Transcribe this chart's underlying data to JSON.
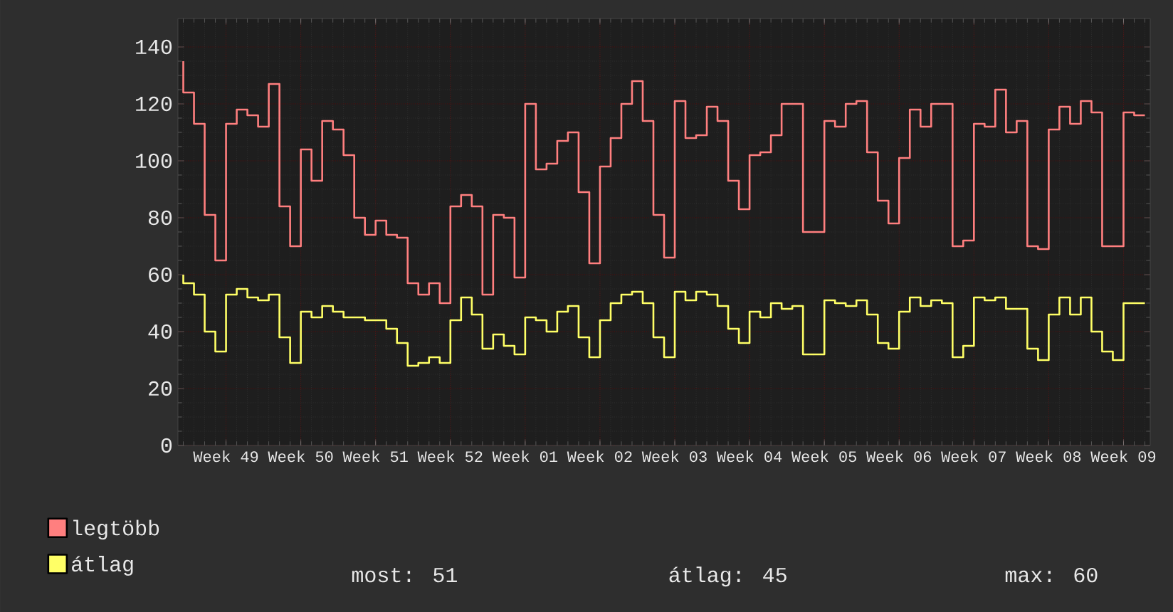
{
  "chart_data": {
    "type": "step",
    "categories": [
      null,
      null,
      null,
      null,
      "Week 49",
      null,
      null,
      null,
      null,
      null,
      null,
      "Week 50",
      null,
      null,
      null,
      null,
      null,
      null,
      "Week 51",
      null,
      null,
      null,
      null,
      null,
      null,
      "Week 52",
      null,
      null,
      null,
      null,
      null,
      null,
      "Week 01",
      null,
      null,
      null,
      null,
      null,
      null,
      "Week 02",
      null,
      null,
      null,
      null,
      null,
      null,
      "Week 03",
      null,
      null,
      null,
      null,
      null,
      null,
      "Week 04",
      null,
      null,
      null,
      null,
      null,
      null,
      "Week 05",
      null,
      null,
      null,
      null,
      null,
      null,
      "Week 06",
      null,
      null,
      null,
      null,
      null,
      null,
      "Week 07",
      null,
      null,
      null,
      null,
      null,
      null,
      "Week 08",
      null,
      null,
      null,
      null,
      null,
      null,
      "Week 09",
      null,
      null
    ],
    "series": [
      {
        "name": "legtöbb",
        "color": "#ff7f7f",
        "values": [
          135,
          124,
          113,
          81,
          65,
          113,
          118,
          116,
          112,
          127,
          84,
          70,
          104,
          93,
          114,
          111,
          102,
          80,
          74,
          79,
          74,
          73,
          57,
          53,
          57,
          50,
          84,
          88,
          84,
          53,
          81,
          80,
          59,
          120,
          97,
          99,
          107,
          110,
          89,
          64,
          98,
          108,
          120,
          128,
          114,
          81,
          66,
          121,
          108,
          109,
          119,
          114,
          93,
          83,
          102,
          103,
          109,
          120,
          120,
          75,
          75,
          114,
          112,
          120,
          121,
          103,
          86,
          78,
          101,
          118,
          112,
          120,
          120,
          70,
          72,
          113,
          112,
          125,
          110,
          114,
          70,
          69,
          111,
          119,
          113,
          121,
          117,
          70,
          70,
          117,
          116
        ]
      },
      {
        "name": "átlag",
        "color": "#ffff66",
        "values": [
          60,
          57,
          53,
          40,
          33,
          53,
          55,
          52,
          51,
          53,
          38,
          29,
          47,
          45,
          49,
          47,
          45,
          45,
          44,
          44,
          41,
          36,
          28,
          29,
          31,
          29,
          44,
          52,
          46,
          34,
          39,
          35,
          32,
          45,
          44,
          40,
          47,
          49,
          38,
          31,
          44,
          50,
          53,
          54,
          50,
          38,
          31,
          54,
          51,
          54,
          53,
          49,
          41,
          36,
          47,
          45,
          50,
          48,
          49,
          32,
          32,
          51,
          50,
          49,
          51,
          46,
          36,
          34,
          47,
          52,
          49,
          51,
          50,
          31,
          35,
          52,
          51,
          52,
          48,
          48,
          34,
          30,
          46,
          52,
          46,
          52,
          40,
          33,
          30,
          50,
          50
        ]
      }
    ],
    "ylim": [
      0,
      150
    ],
    "yticks": [
      0,
      20,
      40,
      60,
      80,
      100,
      120,
      140
    ],
    "grid": true,
    "legend": "bottom",
    "annotations": [
      "most: 51",
      "átlag: 45",
      "max: 60"
    ]
  }
}
